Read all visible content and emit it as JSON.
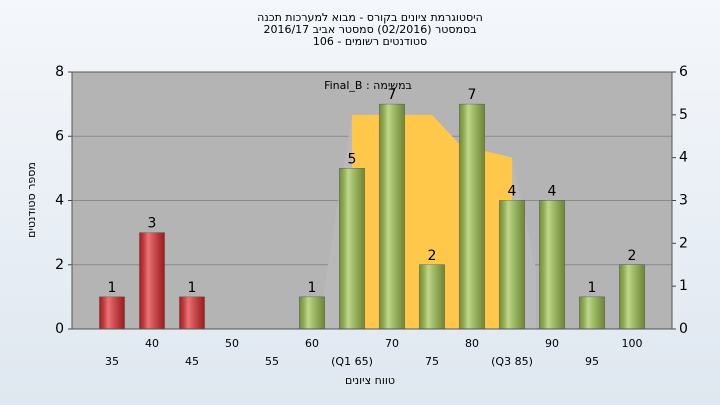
{
  "chart_data": {
    "type": "bar",
    "title_lines": [
      "היסטוגרמת ציונים בקורס - מבוא למערכות תכנה",
      "בסמסטר  (02/2016)  סמסטר אביב 2016/17",
      "סטודנטים רשומים - 106"
    ],
    "annotation": "Final_B : במשימה",
    "x_label": "טווח ציונים",
    "y_label": "מספר סטודנטים",
    "categories": [
      "35",
      "40",
      "45",
      "50",
      "55",
      "60",
      "(Q1 65)",
      "70",
      "75",
      "80",
      "(Q3 85)",
      "90",
      "95",
      "100"
    ],
    "values": [
      1,
      3,
      1,
      0,
      0,
      1,
      5,
      7,
      2,
      7,
      4,
      4,
      1,
      2
    ],
    "colors": [
      "#e0262a",
      "#e0262a",
      "#e0262a",
      "#9cc249",
      "#9cc249",
      "#9cc249",
      "#9cc249",
      "#9cc249",
      "#9cc249",
      "#9cc249",
      "#9cc249",
      "#9cc249",
      "#9cc249",
      "#9cc249"
    ],
    "xlim": [
      30,
      105
    ],
    "ylim": [
      0,
      8
    ],
    "yticks": [
      0,
      2,
      4,
      6,
      8
    ],
    "y2lim": [
      0,
      6
    ],
    "y2ticks": [
      0,
      1,
      2,
      3,
      4,
      5,
      6
    ],
    "grid": true,
    "area": {
      "axis": "y2",
      "color": "#b9b9b9",
      "highlight_color": "#ffc84a",
      "highlight_range": [
        65,
        85
      ],
      "x": [
        61.5,
        65,
        75,
        78.5,
        85,
        88
      ],
      "values": [
        0.9,
        5,
        5,
        4.3,
        4,
        1.4
      ]
    }
  }
}
